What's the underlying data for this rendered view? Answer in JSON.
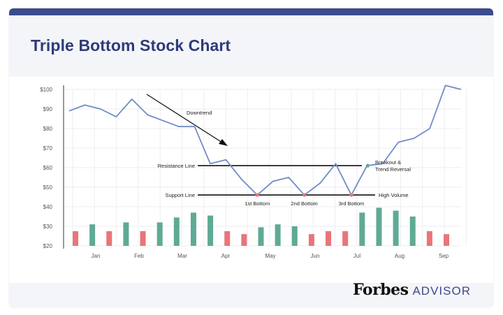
{
  "title": "Triple Bottom Stock Chart",
  "brand": {
    "main": "Forbes",
    "sub": "ADVISOR"
  },
  "colors": {
    "line": "#6f8cc7",
    "up_bar": "#5faa95",
    "down_bar": "#e8757a",
    "marker_red": "#e8757a",
    "marker_green": "#5faa95",
    "title": "#2f3b7a",
    "accent": "#3c4b8c"
  },
  "chart_data": {
    "type": "line",
    "title": "Triple Bottom Stock Chart",
    "x_ticks": [
      "Jan",
      "Feb",
      "Mar",
      "Apr",
      "May",
      "Jun",
      "Jul",
      "Aug",
      "Sep"
    ],
    "y_ticks": [
      "$100",
      "$90",
      "$80",
      "$70",
      "$60",
      "$50",
      "$40",
      "$30",
      "$20"
    ],
    "ylim": [
      20,
      100
    ],
    "price": [
      89,
      92,
      90,
      86,
      95,
      87,
      84,
      81,
      81,
      62,
      64,
      54,
      46,
      53,
      55,
      46,
      52,
      62,
      46,
      61,
      62,
      73,
      75,
      80,
      102,
      100
    ],
    "volume": [
      {
        "value": 27.5,
        "dir": "down"
      },
      {
        "value": 31,
        "dir": "up"
      },
      {
        "value": 27.5,
        "dir": "down"
      },
      {
        "value": 32,
        "dir": "up"
      },
      {
        "value": 27.5,
        "dir": "down"
      },
      {
        "value": 32,
        "dir": "up"
      },
      {
        "value": 34.5,
        "dir": "up"
      },
      {
        "value": 37,
        "dir": "up"
      },
      {
        "value": 35.5,
        "dir": "up"
      },
      {
        "value": 27.5,
        "dir": "down"
      },
      {
        "value": 26,
        "dir": "down"
      },
      {
        "value": 29.5,
        "dir": "up"
      },
      {
        "value": 31,
        "dir": "up"
      },
      {
        "value": 30,
        "dir": "up"
      },
      {
        "value": 26,
        "dir": "down"
      },
      {
        "value": 27.5,
        "dir": "down"
      },
      {
        "value": 27.5,
        "dir": "down"
      },
      {
        "value": 37,
        "dir": "up"
      },
      {
        "value": 39.5,
        "dir": "up"
      },
      {
        "value": 38,
        "dir": "up"
      },
      {
        "value": 35,
        "dir": "up"
      },
      {
        "value": 27.5,
        "dir": "down"
      },
      {
        "value": 26,
        "dir": "down"
      }
    ],
    "resistance": {
      "value": 61,
      "label": "Resistance Line"
    },
    "support": {
      "value": 46,
      "label": "Support Line"
    },
    "bottoms": [
      {
        "label": "1st Bottom",
        "value": 46
      },
      {
        "label": "2nd Bottom",
        "value": 46
      },
      {
        "label": "3rd Bottom",
        "value": 46
      }
    ],
    "breakout": {
      "value": 61,
      "label_line1": "Breakout &",
      "label_line2": "Trend Reversal"
    },
    "annotations": {
      "downtrend": "Downtrend",
      "high_volume": "High Volume"
    },
    "grid": true
  }
}
